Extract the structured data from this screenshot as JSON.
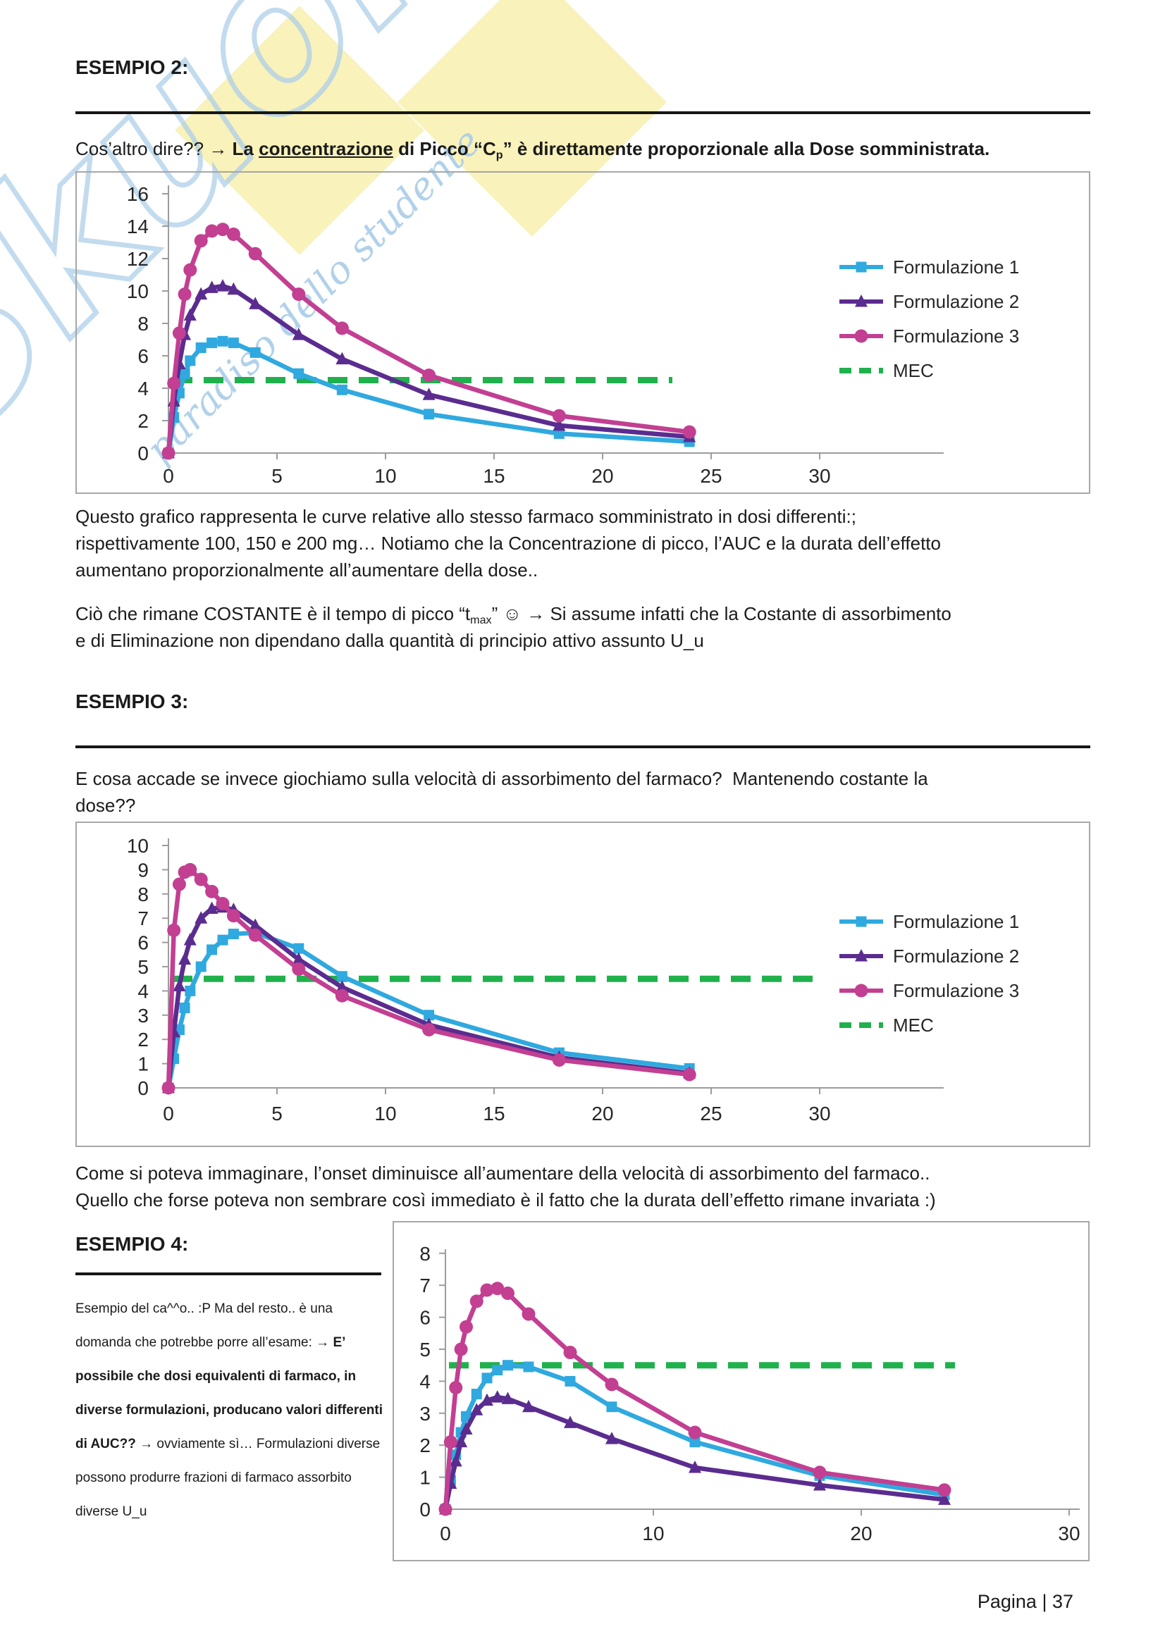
{
  "page": {
    "footer": "Pagina | 37"
  },
  "watermark": {
    "brand": "Skuola",
    "tagline": "paradiso dello studente"
  },
  "colors": {
    "formulation1": "#2fa9df",
    "formulation2": "#5b2c8f",
    "formulation3": "#c23f92",
    "mec": "#1fb14c",
    "axis": "#9c9c9c",
    "box_border": "#a7a7a7",
    "text": "#1b1b1b",
    "watermark_blue": "#aecfe9",
    "watermark_yellow": "#f9f1b6"
  },
  "sections": {
    "es2": {
      "heading": "ESEMPIO 2:"
    },
    "es3": {
      "heading": "ESEMPIO 3:"
    },
    "es4": {
      "heading": "ESEMPIO 4:"
    }
  },
  "paragraphs": {
    "cosaltro": {
      "lines": [
        [
          {
            "t": "Cos’altro dire?? → "
          },
          {
            "t": "La ",
            "b": 1
          },
          {
            "t": "concentrazione",
            "b": 1,
            "u": 1
          },
          {
            "t": " di Picco “C",
            "b": 1
          },
          {
            "t": "p",
            "b": 1,
            "sub": 1
          },
          {
            "t": "” è direttamente proporzionale alla Dose somministrata.",
            "b": 1
          }
        ]
      ]
    },
    "questo": {
      "lines": [
        [
          {
            "t": "Questo grafico rappresenta le curve relative allo stesso farmaco somministrato in dosi differenti:;"
          }
        ],
        [
          {
            "t": "rispettivamente 100, 150 e 200 mg… Notiamo che la Concentrazione di picco, l’AUC e la durata dell’effetto"
          }
        ],
        [
          {
            "t": "aumentano proporzionalmente all’aumentare della dose.."
          }
        ]
      ]
    },
    "cio": {
      "lines": [
        [
          {
            "t": "Ciò che rimane COSTANTE è il tempo di picco “t"
          },
          {
            "t": "max",
            "sub": 1
          },
          {
            "t": "” ☺ → Si assume infatti che la Costante di assorbimento"
          }
        ],
        [
          {
            "t": "e di Eliminazione non dipendano dalla quantità di principio attivo assunto U_u"
          }
        ]
      ]
    },
    "ecosa": {
      "lines": [
        [
          {
            "t": "E cosa accade se invece giochiamo sulla velocità di assorbimento del farmaco?  Mantenendo costante la"
          }
        ],
        [
          {
            "t": "dose??"
          }
        ]
      ]
    },
    "come": {
      "lines": [
        [
          {
            "t": "Come si poteva immaginare, l’onset diminuisce all’aumentare della velocità di assorbimento del farmaco.."
          }
        ],
        [
          {
            "t": "Quello che forse poteva non sembrare così immediato è il fatto che la durata dell’effetto rimane invariata :)"
          }
        ]
      ]
    },
    "es4": {
      "lines": [
        [
          {
            "t": "Esempio del ca^^o.. :P Ma del resto.. è una"
          }
        ],
        [
          {
            "t": "domanda che potrebbe porre all’esame: → "
          },
          {
            "t": "E’",
            "b": 1
          }
        ],
        [
          {
            "t": "possibile che dosi equivalenti di farmaco, in",
            "b": 1
          }
        ],
        [
          {
            "t": "diverse formulazioni, producano valori differenti",
            "b": 1
          }
        ],
        [
          {
            "t": "di AUC?? ",
            "b": 1
          },
          {
            "t": "→ ovviamente sì… Formulazioni diverse"
          }
        ],
        [
          {
            "t": "possono produrre frazioni di farmaco assorbito"
          }
        ],
        [
          {
            "t": "diverse U_u"
          }
        ]
      ]
    }
  },
  "chart_data": [
    {
      "type": "line",
      "title": "",
      "xlabel": "",
      "ylabel": "",
      "x": [
        0,
        0.25,
        0.5,
        0.75,
        1,
        1.5,
        2,
        2.5,
        3,
        4,
        6,
        8,
        12,
        18,
        24
      ],
      "series": [
        {
          "name": "Formulazione 1",
          "marker": "square",
          "color": "#2fa9df",
          "values": [
            0,
            2.2,
            3.7,
            4.9,
            5.7,
            6.5,
            6.8,
            6.9,
            6.8,
            6.2,
            4.9,
            3.9,
            2.4,
            1.2,
            0.7
          ]
        },
        {
          "name": "Formulazione 2",
          "marker": "triangle",
          "color": "#5b2c8f",
          "values": [
            0,
            3.2,
            5.5,
            7.3,
            8.5,
            9.8,
            10.2,
            10.3,
            10.1,
            9.2,
            7.3,
            5.8,
            3.6,
            1.7,
            1.0
          ]
        },
        {
          "name": "Formulazione 3",
          "marker": "circle",
          "color": "#c23f92",
          "values": [
            0,
            4.3,
            7.4,
            9.8,
            11.3,
            13.1,
            13.7,
            13.8,
            13.5,
            12.3,
            9.8,
            7.7,
            4.8,
            2.3,
            1.3
          ]
        }
      ],
      "mec": {
        "label": "MEC",
        "value": 4.5,
        "color": "#1fb14c"
      },
      "ylim": [
        0,
        16
      ],
      "ytick": 2,
      "xticks": [
        0,
        5,
        10,
        15,
        20,
        25,
        30
      ],
      "grid": false,
      "legend_position": "right",
      "show_legend": true
    },
    {
      "type": "line",
      "title": "",
      "xlabel": "",
      "ylabel": "",
      "x": [
        0,
        0.25,
        0.5,
        0.75,
        1,
        1.5,
        2,
        2.5,
        3,
        4,
        6,
        8,
        12,
        18,
        24
      ],
      "series": [
        {
          "name": "Formulazione 1",
          "marker": "square",
          "color": "#2fa9df",
          "values": [
            0,
            1.2,
            2.4,
            3.3,
            4.0,
            5.0,
            5.7,
            6.1,
            6.35,
            6.4,
            5.75,
            4.6,
            3.0,
            1.45,
            0.8
          ]
        },
        {
          "name": "Formulazione 2",
          "marker": "triangle",
          "color": "#5b2c8f",
          "values": [
            0,
            2.3,
            4.2,
            5.3,
            6.1,
            7.0,
            7.4,
            7.45,
            7.35,
            6.7,
            5.3,
            4.15,
            2.6,
            1.25,
            0.6
          ]
        },
        {
          "name": "Formulazione 3",
          "marker": "circle",
          "color": "#c23f92",
          "values": [
            0,
            6.5,
            8.4,
            8.9,
            9.0,
            8.6,
            8.1,
            7.6,
            7.1,
            6.3,
            4.9,
            3.8,
            2.4,
            1.15,
            0.55
          ]
        }
      ],
      "mec": {
        "label": "MEC",
        "value": 4.5,
        "color": "#1fb14c"
      },
      "ylim": [
        0,
        10
      ],
      "ytick": 1,
      "xticks": [
        0,
        5,
        10,
        15,
        20,
        25,
        30
      ],
      "grid": false,
      "legend_position": "right",
      "show_legend": true
    },
    {
      "type": "line",
      "title": "",
      "xlabel": "",
      "ylabel": "",
      "x": [
        0,
        0.25,
        0.5,
        0.75,
        1,
        1.5,
        2,
        2.5,
        3,
        4,
        6,
        8,
        12,
        18,
        24
      ],
      "series": [
        {
          "name": "Formulazione 1",
          "marker": "square",
          "color": "#2fa9df",
          "values": [
            0,
            0.9,
            1.7,
            2.4,
            2.9,
            3.6,
            4.1,
            4.35,
            4.5,
            4.45,
            4.0,
            3.2,
            2.1,
            1.05,
            0.45
          ]
        },
        {
          "name": "Formulazione 2",
          "marker": "triangle",
          "color": "#5b2c8f",
          "values": [
            0,
            0.8,
            1.5,
            2.1,
            2.5,
            3.1,
            3.4,
            3.5,
            3.45,
            3.2,
            2.7,
            2.2,
            1.3,
            0.75,
            0.3
          ]
        },
        {
          "name": "Formulazione 3",
          "marker": "circle",
          "color": "#c23f92",
          "values": [
            0,
            2.1,
            3.8,
            5.0,
            5.7,
            6.5,
            6.85,
            6.9,
            6.75,
            6.1,
            4.9,
            3.9,
            2.4,
            1.15,
            0.6
          ]
        }
      ],
      "mec": {
        "label": "MEC",
        "value": 4.5,
        "color": "#1fb14c"
      },
      "ylim": [
        0,
        8
      ],
      "ytick": 1,
      "xticks": [
        0,
        10,
        20,
        30
      ],
      "grid": false,
      "legend_position": "none",
      "show_legend": false
    }
  ]
}
